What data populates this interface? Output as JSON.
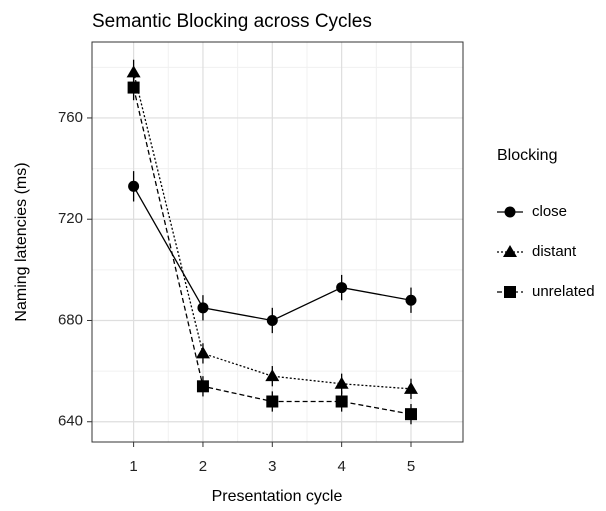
{
  "chart_data": {
    "type": "line",
    "title": "Semantic Blocking across Cycles",
    "x_label": "Presentation cycle",
    "y_label": "Naming latencies (ms)",
    "x": [
      1,
      2,
      3,
      4,
      5
    ],
    "xlim": [
      0.4,
      5.75
    ],
    "xticks": [
      1,
      2,
      3,
      4,
      5
    ],
    "x_minor_ticks": [
      1.5,
      2.5,
      3.5,
      4.5
    ],
    "ylim": [
      632,
      790
    ],
    "yticks": [
      640,
      680,
      720,
      760
    ],
    "y_minor_ticks": [
      660,
      700,
      740,
      780
    ],
    "grid": true,
    "legend_title": "Blocking",
    "legend": "right",
    "series": [
      {
        "name": "close",
        "color": "#000000",
        "marker": "circle",
        "dash": "solid",
        "values": [
          733,
          685,
          680,
          693,
          688
        ],
        "errors": [
          6,
          5,
          5,
          5,
          5
        ]
      },
      {
        "name": "distant",
        "color": "#000000",
        "marker": "triangle",
        "dash": "dotted",
        "values": [
          778,
          667,
          658,
          655,
          653
        ],
        "errors": [
          5,
          4,
          4,
          4,
          4
        ]
      },
      {
        "name": "unrelated",
        "color": "#000000",
        "marker": "square",
        "dash": "dashed",
        "values": [
          772,
          654,
          648,
          648,
          643
        ],
        "errors": [
          5,
          4,
          4,
          4,
          4
        ]
      }
    ]
  }
}
